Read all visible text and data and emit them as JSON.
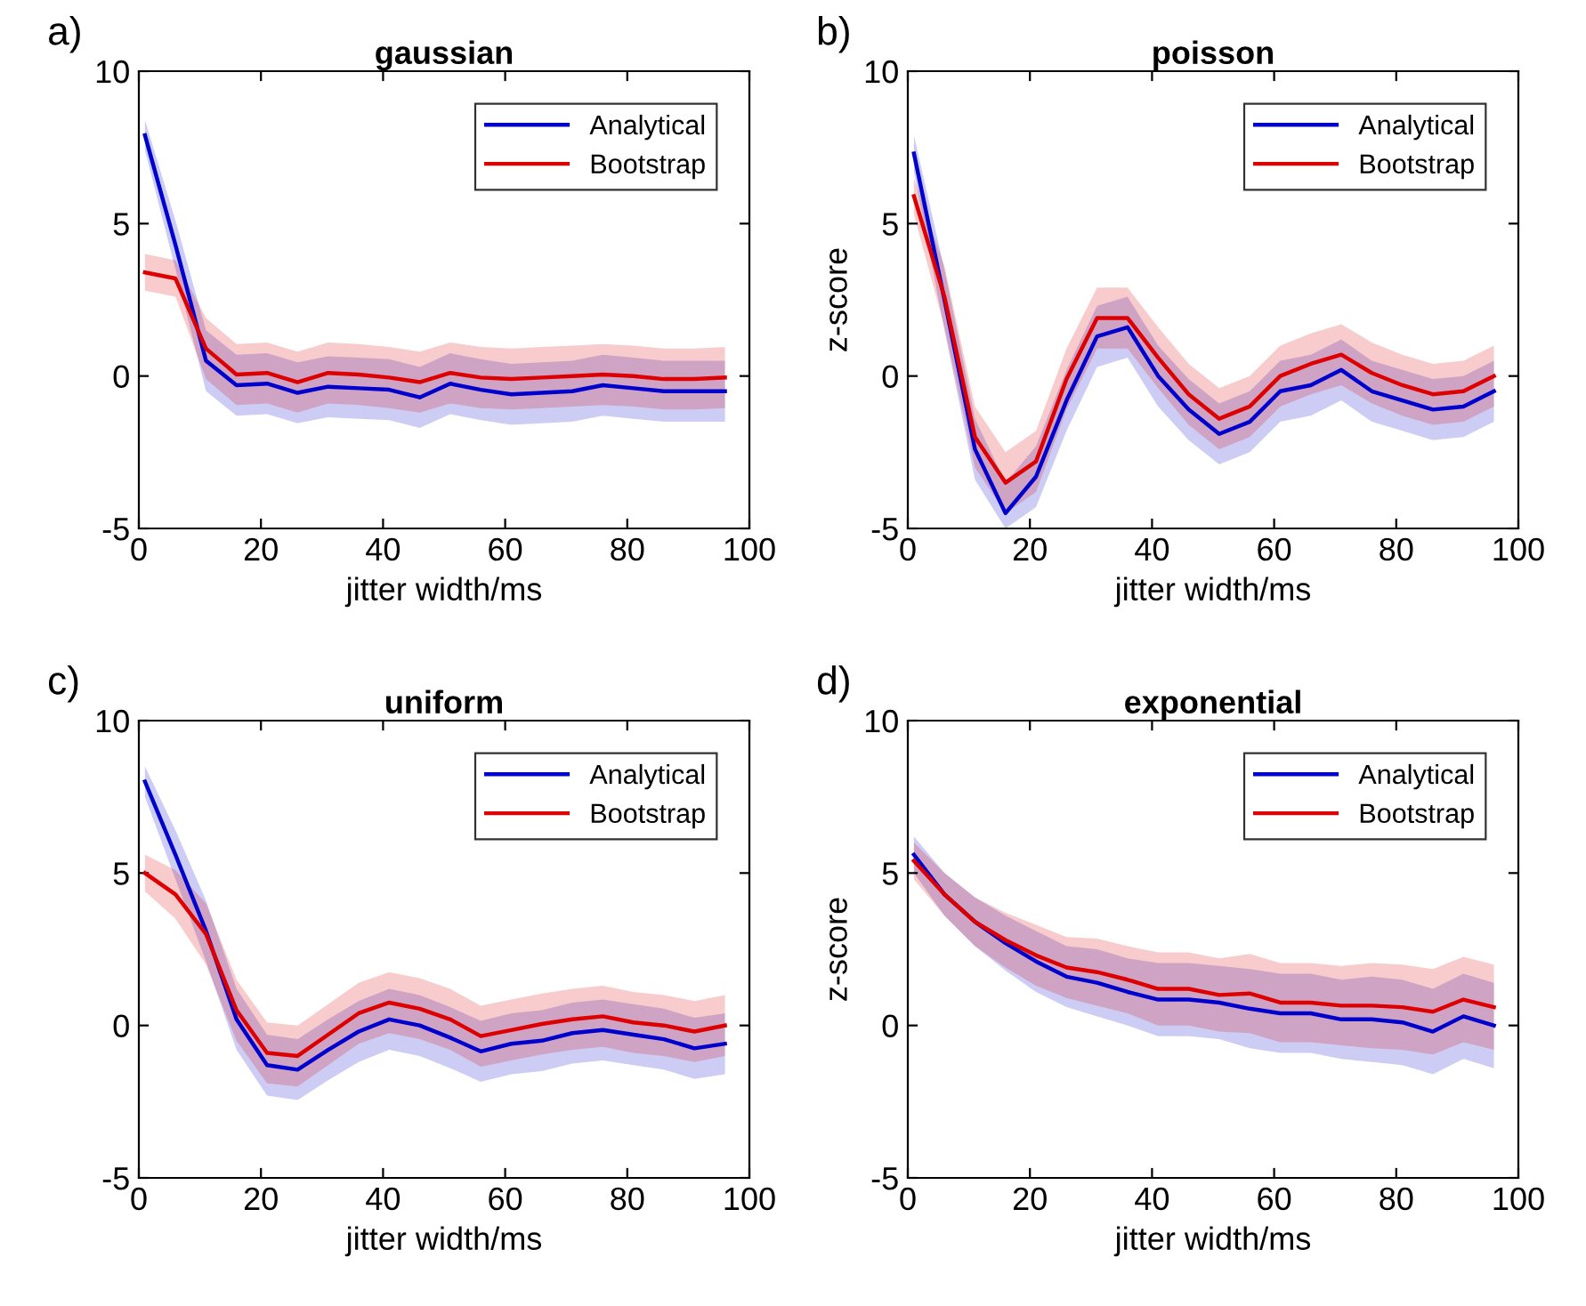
{
  "chart_data": [
    {
      "type": "line",
      "title": "gaussian",
      "annotations": [
        "a)"
      ],
      "xlabel": "jitter width/ms",
      "x": [
        1,
        6,
        11,
        16,
        21,
        26,
        31,
        36,
        41,
        46,
        51,
        56,
        61,
        66,
        71,
        76,
        81,
        86,
        91,
        96
      ],
      "xlim": [
        0,
        100
      ],
      "xticks": [
        0,
        20,
        40,
        60,
        80,
        100
      ],
      "ylim": [
        -5,
        10
      ],
      "yticks": [
        -5,
        0,
        5,
        10
      ],
      "legend": "top right",
      "grid": false,
      "series": [
        {
          "name": "Analytical",
          "color": "#0000cc",
          "values": [
            7.9,
            4.3,
            0.5,
            -0.3,
            -0.25,
            -0.55,
            -0.35,
            -0.4,
            -0.45,
            -0.7,
            -0.25,
            -0.45,
            -0.6,
            -0.55,
            -0.5,
            -0.3,
            -0.4,
            -0.5,
            -0.5,
            -0.5
          ],
          "lower": [
            7.4,
            3.5,
            -0.5,
            -1.3,
            -1.25,
            -1.55,
            -1.35,
            -1.4,
            -1.45,
            -1.7,
            -1.25,
            -1.45,
            -1.6,
            -1.55,
            -1.5,
            -1.3,
            -1.4,
            -1.5,
            -1.5,
            -1.5
          ],
          "upper": [
            8.4,
            5.1,
            1.5,
            0.7,
            0.75,
            0.45,
            0.65,
            0.6,
            0.55,
            0.3,
            0.75,
            0.55,
            0.4,
            0.45,
            0.5,
            0.7,
            0.6,
            0.5,
            0.5,
            0.5
          ]
        },
        {
          "name": "Bootstrap",
          "color": "#dd0000",
          "values": [
            3.4,
            3.2,
            0.9,
            0.05,
            0.1,
            -0.2,
            0.1,
            0.05,
            -0.05,
            -0.2,
            0.1,
            -0.05,
            -0.1,
            -0.05,
            0.0,
            0.05,
            0.0,
            -0.1,
            -0.1,
            -0.05
          ],
          "lower": [
            2.8,
            2.6,
            -0.1,
            -0.95,
            -0.9,
            -1.2,
            -0.9,
            -0.95,
            -1.05,
            -1.2,
            -0.9,
            -1.05,
            -1.1,
            -1.05,
            -1.0,
            -0.95,
            -1.0,
            -1.1,
            -1.1,
            -1.05
          ],
          "upper": [
            4.0,
            3.8,
            1.9,
            1.05,
            1.1,
            0.8,
            1.1,
            1.05,
            0.95,
            0.8,
            1.1,
            0.95,
            0.9,
            0.95,
            1.0,
            1.05,
            1.0,
            0.9,
            0.9,
            0.95
          ]
        }
      ]
    },
    {
      "type": "line",
      "title": "poisson",
      "annotations": [
        "b)"
      ],
      "xlabel": "jitter width/ms",
      "ylabel": "z-score",
      "x": [
        1,
        6,
        11,
        16,
        21,
        26,
        31,
        36,
        41,
        46,
        51,
        56,
        61,
        66,
        71,
        76,
        81,
        86,
        91,
        96
      ],
      "xlim": [
        0,
        100
      ],
      "xticks": [
        0,
        20,
        40,
        60,
        80,
        100
      ],
      "ylim": [
        -5,
        10
      ],
      "yticks": [
        -5,
        0,
        5,
        10
      ],
      "legend": "top right",
      "grid": false,
      "series": [
        {
          "name": "Analytical",
          "color": "#0000cc",
          "values": [
            7.3,
            2.5,
            -2.4,
            -4.5,
            -3.3,
            -0.8,
            1.3,
            1.6,
            0.0,
            -1.1,
            -1.9,
            -1.5,
            -0.5,
            -0.3,
            0.2,
            -0.5,
            -0.8,
            -1.1,
            -1.0,
            -0.5
          ],
          "lower": [
            6.7,
            1.5,
            -3.4,
            -5.0,
            -4.3,
            -1.8,
            0.3,
            0.6,
            -1.0,
            -2.1,
            -2.9,
            -2.5,
            -1.5,
            -1.3,
            -0.8,
            -1.5,
            -1.8,
            -2.1,
            -2.0,
            -1.5
          ],
          "upper": [
            7.9,
            3.5,
            -1.4,
            -3.5,
            -2.3,
            0.2,
            2.3,
            2.6,
            1.0,
            -0.1,
            -0.9,
            -0.5,
            0.5,
            0.7,
            1.2,
            0.5,
            0.2,
            -0.1,
            0.0,
            0.5
          ]
        },
        {
          "name": "Bootstrap",
          "color": "#dd0000",
          "values": [
            5.9,
            2.6,
            -2.0,
            -3.5,
            -2.8,
            -0.1,
            1.9,
            1.9,
            0.6,
            -0.6,
            -1.4,
            -1.0,
            0.0,
            0.4,
            0.7,
            0.1,
            -0.3,
            -0.6,
            -0.5,
            0.0
          ],
          "lower": [
            5.3,
            1.6,
            -3.0,
            -4.5,
            -3.8,
            -1.1,
            0.9,
            0.9,
            -0.4,
            -1.6,
            -2.4,
            -2.0,
            -1.0,
            -0.6,
            -0.3,
            -0.9,
            -1.3,
            -1.6,
            -1.5,
            -1.0
          ],
          "upper": [
            6.5,
            3.6,
            -1.0,
            -2.5,
            -1.8,
            0.9,
            2.9,
            2.9,
            1.6,
            0.4,
            -0.4,
            0.0,
            1.0,
            1.4,
            1.7,
            1.1,
            0.7,
            0.4,
            0.5,
            1.0
          ]
        }
      ]
    },
    {
      "type": "line",
      "title": "uniform",
      "annotations": [
        "c)"
      ],
      "xlabel": "jitter width/ms",
      "x": [
        1,
        6,
        11,
        16,
        21,
        26,
        31,
        36,
        41,
        46,
        51,
        56,
        61,
        66,
        71,
        76,
        81,
        86,
        91,
        96
      ],
      "xlim": [
        0,
        100
      ],
      "xticks": [
        0,
        20,
        40,
        60,
        80,
        100
      ],
      "ylim": [
        -5,
        10
      ],
      "yticks": [
        -5,
        0,
        5,
        10
      ],
      "legend": "top right",
      "grid": false,
      "series": [
        {
          "name": "Analytical",
          "color": "#0000cc",
          "values": [
            8.0,
            5.6,
            3.1,
            0.2,
            -1.3,
            -1.45,
            -0.8,
            -0.2,
            0.2,
            0.0,
            -0.4,
            -0.85,
            -0.6,
            -0.5,
            -0.25,
            -0.15,
            -0.3,
            -0.45,
            -0.75,
            -0.6
          ],
          "lower": [
            7.5,
            4.8,
            2.1,
            -0.8,
            -2.3,
            -2.45,
            -1.8,
            -1.2,
            -0.8,
            -1.0,
            -1.4,
            -1.85,
            -1.6,
            -1.5,
            -1.25,
            -1.15,
            -1.3,
            -1.45,
            -1.75,
            -1.6
          ],
          "upper": [
            8.5,
            6.4,
            4.1,
            1.2,
            -0.3,
            -0.45,
            0.2,
            0.8,
            1.2,
            1.0,
            0.6,
            0.15,
            0.4,
            0.5,
            0.75,
            0.85,
            0.7,
            0.55,
            0.25,
            0.4
          ]
        },
        {
          "name": "Bootstrap",
          "color": "#dd0000",
          "values": [
            5.0,
            4.3,
            3.0,
            0.5,
            -0.9,
            -1.0,
            -0.3,
            0.4,
            0.75,
            0.55,
            0.2,
            -0.35,
            -0.15,
            0.05,
            0.2,
            0.3,
            0.1,
            0.0,
            -0.2,
            0.0
          ],
          "lower": [
            4.4,
            3.5,
            2.0,
            -0.5,
            -1.9,
            -2.0,
            -1.3,
            -0.6,
            -0.25,
            -0.45,
            -0.8,
            -1.35,
            -1.15,
            -0.95,
            -0.8,
            -0.7,
            -0.9,
            -1.0,
            -1.2,
            -1.0
          ],
          "upper": [
            5.6,
            5.1,
            4.0,
            1.5,
            0.1,
            0.0,
            0.7,
            1.4,
            1.75,
            1.55,
            1.2,
            0.65,
            0.85,
            1.05,
            1.2,
            1.3,
            1.1,
            1.0,
            0.8,
            1.0
          ]
        }
      ]
    },
    {
      "type": "line",
      "title": "exponential",
      "annotations": [
        "d)"
      ],
      "xlabel": "jitter width/ms",
      "ylabel": "z-score",
      "x": [
        1,
        6,
        11,
        16,
        21,
        26,
        31,
        36,
        41,
        46,
        51,
        56,
        61,
        66,
        71,
        76,
        81,
        86,
        91,
        96
      ],
      "xlim": [
        0,
        100
      ],
      "xticks": [
        0,
        20,
        40,
        60,
        80,
        100
      ],
      "ylim": [
        -5,
        10
      ],
      "yticks": [
        -5,
        0,
        5,
        10
      ],
      "legend": "top right",
      "grid": false,
      "series": [
        {
          "name": "Analytical",
          "color": "#0000cc",
          "values": [
            5.6,
            4.3,
            3.4,
            2.7,
            2.1,
            1.6,
            1.4,
            1.1,
            0.85,
            0.85,
            0.75,
            0.55,
            0.4,
            0.4,
            0.2,
            0.2,
            0.1,
            -0.2,
            0.3,
            0.0
          ],
          "lower": [
            5.0,
            3.6,
            2.6,
            1.8,
            1.1,
            0.6,
            0.3,
            0.0,
            -0.35,
            -0.35,
            -0.45,
            -0.75,
            -0.9,
            -0.9,
            -1.1,
            -1.2,
            -1.3,
            -1.6,
            -1.1,
            -1.4
          ],
          "upper": [
            6.2,
            5.0,
            4.2,
            3.6,
            3.1,
            2.6,
            2.5,
            2.2,
            2.05,
            2.05,
            1.95,
            1.85,
            1.7,
            1.7,
            1.5,
            1.6,
            1.5,
            1.2,
            1.7,
            1.4
          ]
        },
        {
          "name": "Bootstrap",
          "color": "#dd0000",
          "values": [
            5.4,
            4.3,
            3.4,
            2.8,
            2.3,
            1.9,
            1.75,
            1.5,
            1.2,
            1.2,
            1.0,
            1.05,
            0.75,
            0.75,
            0.65,
            0.65,
            0.6,
            0.45,
            0.85,
            0.6
          ],
          "lower": [
            4.8,
            3.6,
            2.6,
            1.9,
            1.3,
            0.9,
            0.65,
            0.4,
            0.0,
            0.0,
            -0.2,
            -0.25,
            -0.55,
            -0.55,
            -0.65,
            -0.75,
            -0.8,
            -0.95,
            -0.55,
            -0.8
          ],
          "upper": [
            6.0,
            5.0,
            4.2,
            3.7,
            3.3,
            2.9,
            2.85,
            2.6,
            2.4,
            2.4,
            2.2,
            2.35,
            2.05,
            2.05,
            1.95,
            2.05,
            2.0,
            1.85,
            2.25,
            2.0
          ]
        }
      ]
    }
  ]
}
